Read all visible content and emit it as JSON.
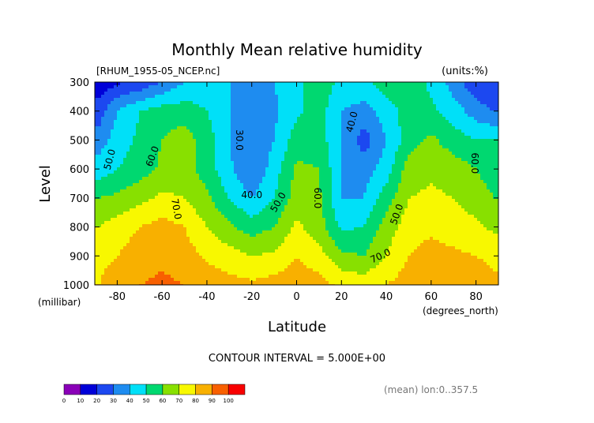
{
  "chart_data": {
    "type": "heatmap",
    "title": "Monthly Mean relative humidity",
    "file_label": "[RHUM_1955-05_NCEP.nc]",
    "units_label": "(units:%)",
    "ylabel": "Level",
    "ylabel_unit": "(millibar)",
    "xlabel": "Latitude",
    "xlabel_unit": "(degrees_north)",
    "xlim": [
      -90,
      90
    ],
    "ylim": [
      1000,
      300
    ],
    "x_ticks": [
      -80,
      -60,
      -40,
      -20,
      0,
      20,
      40,
      60,
      80
    ],
    "y_ticks": [
      300,
      400,
      500,
      600,
      700,
      800,
      900,
      1000
    ],
    "contour_interval_label": "CONTOUR INTERVAL = 5.000E+00",
    "footer_note": "(mean) lon:0..357.5",
    "colorbar": {
      "ticks": [
        0,
        10,
        20,
        30,
        40,
        50,
        60,
        70,
        80,
        90,
        100
      ],
      "colors": [
        "#8a00b8",
        "#0000d8",
        "#1c48f0",
        "#1e8cf0",
        "#00e0f8",
        "#00d870",
        "#88e000",
        "#f8f800",
        "#f8b000",
        "#f86000",
        "#f80000"
      ]
    },
    "lats": [
      -88,
      -80,
      -70,
      -60,
      -50,
      -40,
      -30,
      -20,
      -10,
      0,
      10,
      20,
      30,
      40,
      50,
      60,
      70,
      80,
      88
    ],
    "levels": [
      300,
      400,
      500,
      600,
      700,
      800,
      900,
      1000
    ],
    "values": [
      [
        14,
        18,
        22,
        30,
        40,
        45,
        40,
        35,
        40,
        48,
        55,
        48,
        48,
        55,
        55,
        48,
        35,
        22,
        20
      ],
      [
        25,
        40,
        50,
        55,
        55,
        50,
        40,
        34,
        38,
        48,
        55,
        40,
        36,
        45,
        55,
        52,
        45,
        35,
        30
      ],
      [
        35,
        45,
        52,
        60,
        65,
        55,
        40,
        30,
        40,
        55,
        55,
        40,
        25,
        40,
        55,
        62,
        55,
        50,
        50
      ],
      [
        45,
        50,
        55,
        62,
        65,
        55,
        42,
        30,
        45,
        62,
        60,
        40,
        35,
        45,
        65,
        68,
        65,
        60,
        55
      ],
      [
        60,
        62,
        67,
        72,
        70,
        62,
        50,
        40,
        50,
        65,
        62,
        40,
        40,
        55,
        70,
        72,
        70,
        65,
        60
      ],
      [
        70,
        75,
        80,
        84,
        80,
        70,
        62,
        55,
        60,
        72,
        65,
        48,
        50,
        65,
        75,
        78,
        75,
        72,
        68
      ],
      [
        78,
        80,
        85,
        88,
        85,
        78,
        74,
        70,
        72,
        80,
        74,
        62,
        60,
        70,
        80,
        84,
        82,
        80,
        78
      ],
      [
        80,
        84,
        90,
        92,
        90,
        86,
        84,
        82,
        84,
        86,
        84,
        78,
        76,
        80,
        85,
        90,
        88,
        85,
        82
      ]
    ],
    "contour_labels": [
      "30.0",
      "40.0",
      "40.0",
      "50.0",
      "50.0",
      "50.0",
      "60.0",
      "60.0",
      "60.0",
      "70.0",
      "70.0"
    ]
  }
}
